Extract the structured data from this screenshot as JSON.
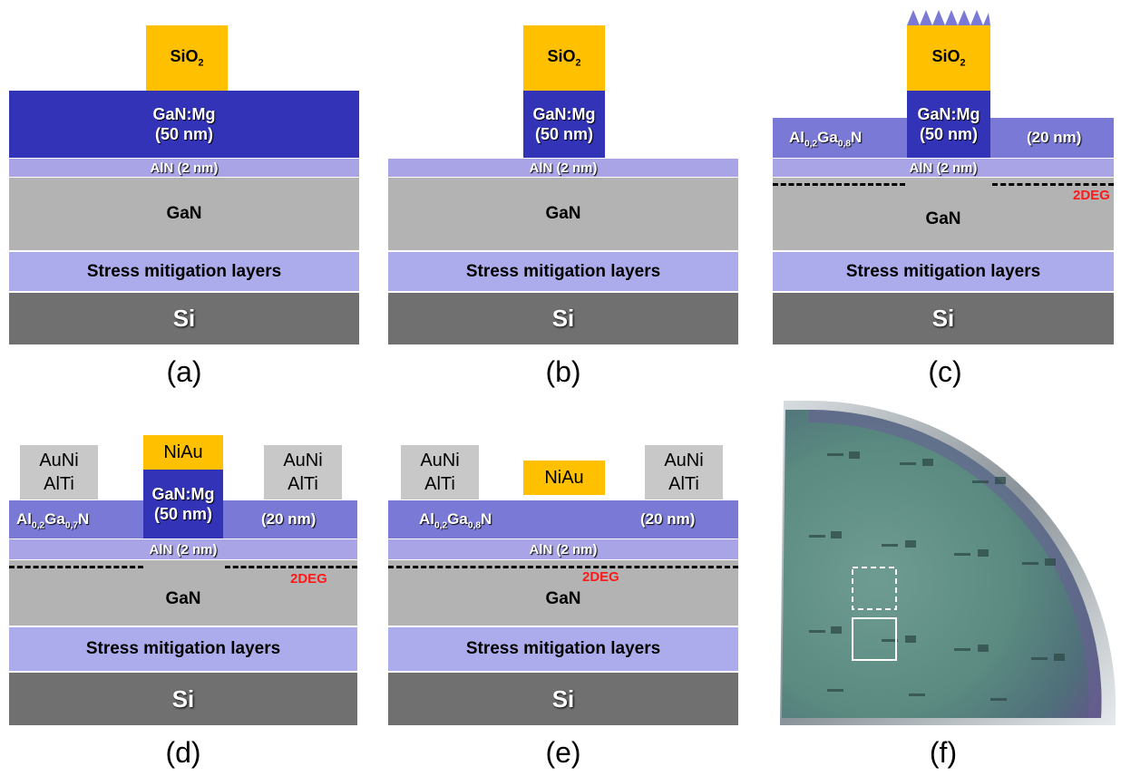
{
  "captions": {
    "a": "(a)",
    "b": "(b)",
    "c": "(c)",
    "d": "(d)",
    "e": "(e)",
    "f": "(f)"
  },
  "layers": {
    "sio2_main": "SiO",
    "sio2_sub": "2",
    "gan_mg": "GaN:Mg",
    "gan_mg_thickness": "(50 nm)",
    "aln": "AlN (2 nm)",
    "gan": "GaN",
    "stress": "Stress mitigation layers",
    "si": "Si",
    "niau": "NiAu",
    "contact_top": "AuNi",
    "contact_bottom": "AlTi",
    "barrier_thickness": "(20 nm)",
    "twodeg": "2DEG"
  },
  "algan": {
    "al": "Al",
    "al_sub": "0,2",
    "ga": "Ga",
    "ga_sub_08": "0,8",
    "ga_sub_07": "0,7",
    "n": "N"
  },
  "colors": {
    "gan_mg": "#3333b8",
    "algan": "#7a7ad6",
    "aln": "#a8a4e6",
    "gan": "#b3b3b3",
    "stress": "#acacec",
    "si": "#707070",
    "sio2": "#ffc000",
    "contact": "#c8c8c8",
    "twodeg": "#ff1a1a"
  }
}
